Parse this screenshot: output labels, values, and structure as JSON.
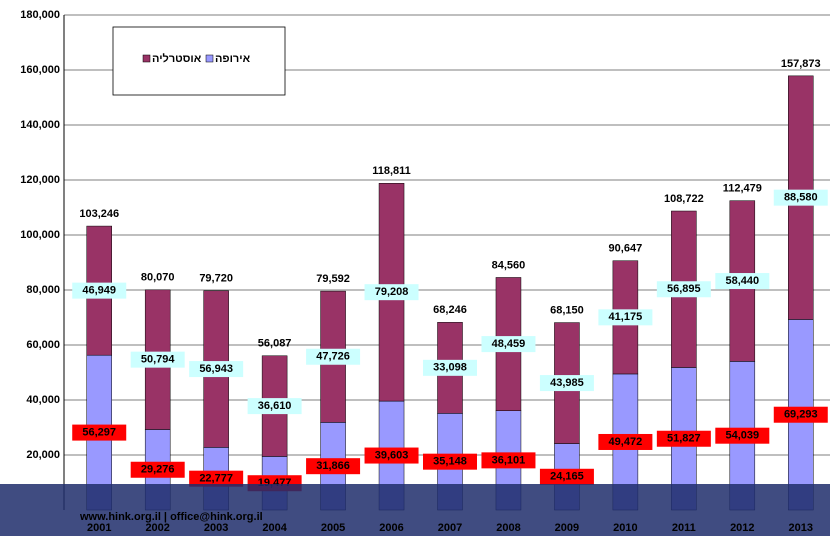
{
  "chart_data": {
    "type": "stacked_bar",
    "categories": [
      "2001",
      "2002",
      "2003",
      "2004",
      "2005",
      "2006",
      "2007",
      "2008",
      "2009",
      "2010",
      "2011",
      "2012",
      "2013"
    ],
    "series": [
      {
        "name": "אירופה",
        "color": "#9999ff",
        "label_box": "#ff0000",
        "values": [
          56297,
          29276,
          22777,
          19477,
          31866,
          39603,
          35148,
          36101,
          24165,
          49472,
          51827,
          54039,
          69293
        ],
        "value_labels": [
          "56,297",
          "29,276",
          "22,777",
          "19,477",
          "31,866",
          "39,603",
          "35,148",
          "36,101",
          "24,165",
          "49,472",
          "51,827",
          "54,039",
          "69,293"
        ]
      },
      {
        "name": "אוסטרליה",
        "color": "#993366",
        "label_box": "#ccffff",
        "values": [
          46949,
          50794,
          56943,
          36610,
          47726,
          79208,
          33098,
          48459,
          43985,
          41175,
          56895,
          58440,
          88580
        ],
        "value_labels": [
          "46,949",
          "50,794",
          "56,943",
          "36,610",
          "47,726",
          "79,208",
          "33,098",
          "48,459",
          "43,985",
          "41,175",
          "56,895",
          "58,440",
          "88,580"
        ]
      }
    ],
    "totals": {
      "values": [
        103246,
        80070,
        79720,
        56087,
        79592,
        118811,
        68246,
        84560,
        68150,
        90647,
        108722,
        112479,
        157873
      ],
      "value_labels": [
        "103,246",
        "80,070",
        "79,720",
        "56,087",
        "79,592",
        "118,811",
        "68,246",
        "84,560",
        "68,150",
        "90,647",
        "108,722",
        "112,479",
        "157,873"
      ]
    },
    "ylim": [
      0,
      180000
    ],
    "yticks": [
      {
        "value": 20000,
        "label": "20,000"
      },
      {
        "value": 40000,
        "label": "40,000"
      },
      {
        "value": 60000,
        "label": "60,000"
      },
      {
        "value": 80000,
        "label": "80,000"
      },
      {
        "value": 100000,
        "label": "100,000"
      },
      {
        "value": 120000,
        "label": "120,000"
      },
      {
        "value": 140000,
        "label": "140,000"
      },
      {
        "value": 160000,
        "label": "160,000"
      },
      {
        "value": 180000,
        "label": "180,000"
      }
    ],
    "grid": true,
    "banner": "www.hink.org.il  |  office@hink.org.il"
  }
}
